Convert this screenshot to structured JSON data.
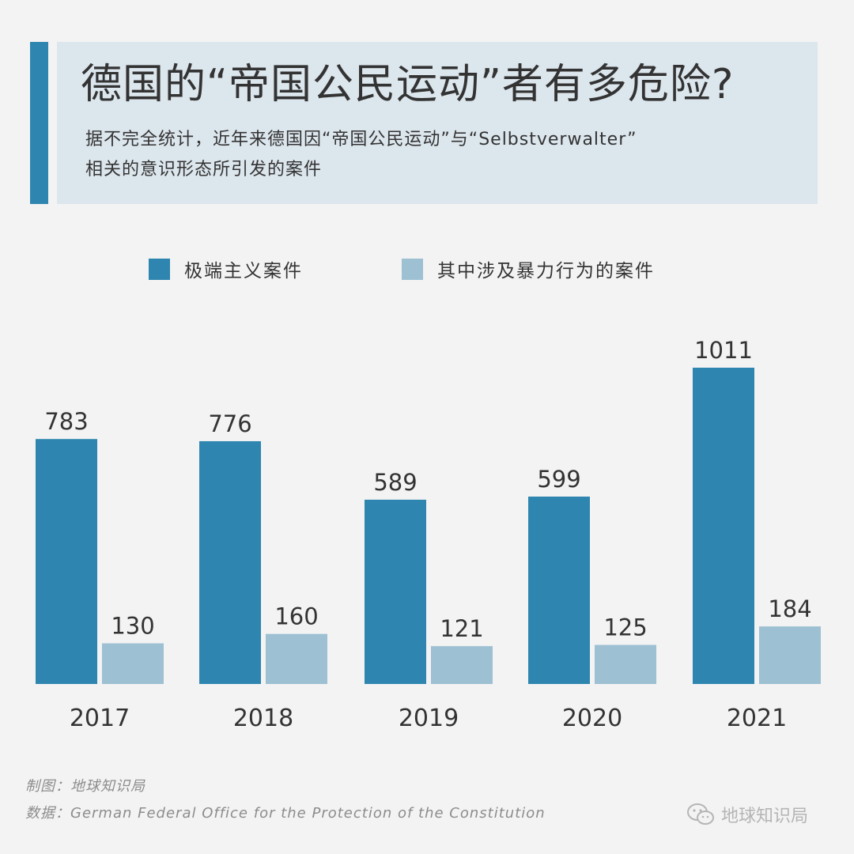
{
  "header": {
    "title": "德国的“帝国公民运动”者有多危险?",
    "subtitle_line1": "据不完全统计，近年来德国因“帝国公民运动”与“Selbstverwalter”",
    "subtitle_line2": "相关的意识形态所引发的案件"
  },
  "chart_data": {
    "type": "bar",
    "categories": [
      "2017",
      "2018",
      "2019",
      "2020",
      "2021"
    ],
    "series": [
      {
        "name": "极端主义案件",
        "values": [
          783,
          776,
          589,
          599,
          1011
        ],
        "color": "#2e86b0"
      },
      {
        "name": "其中涉及暴力行为的案件",
        "values": [
          130,
          160,
          121,
          125,
          184
        ],
        "color": "#9dc0d3"
      }
    ],
    "title": "德国的“帝国公民运动”者有多危险?",
    "xlabel": "",
    "ylabel": "",
    "ylim": [
      0,
      1011
    ],
    "grid": false,
    "legend": "top"
  },
  "footer": {
    "credit": "制图：地球知识局",
    "source": "数据：German Federal Office for the Protection of the Constitution"
  },
  "watermark": {
    "text": "地球知识局",
    "icon": "wechat-icon"
  }
}
